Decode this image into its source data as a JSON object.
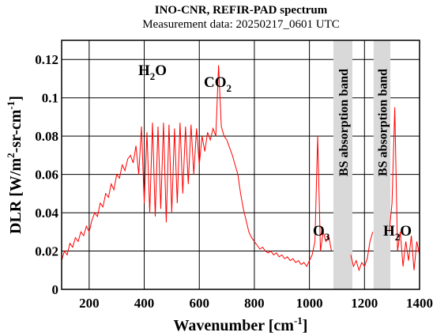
{
  "chart_data": {
    "type": "line",
    "title": "INO-CNR, REFIR-PAD spectrum",
    "subtitle": "Measurement data: 20250217_0601 UTC",
    "xlabel": [
      "Wavenumber [cm",
      "-1",
      "]"
    ],
    "ylabel": [
      "DLR [W/m",
      "2",
      "-sr-cm",
      "-1",
      "]"
    ],
    "xlim": [
      100,
      1400
    ],
    "ylim": [
      0,
      0.13
    ],
    "xticks": [
      200,
      400,
      600,
      800,
      1000,
      1200,
      1400
    ],
    "yticks": [
      0,
      0.02,
      0.04,
      0.06,
      0.08,
      0.1,
      0.12
    ],
    "grid": true,
    "bands": [
      {
        "label": "BS absorption band",
        "range": [
          1087,
          1156
        ]
      },
      {
        "label": "BS absorption band",
        "range": [
          1233,
          1294
        ]
      }
    ],
    "annotations": [
      {
        "parts": [
          "H",
          "2",
          "O"
        ]
      },
      {
        "parts": [
          "CO",
          "2"
        ]
      },
      {
        "parts": [
          "O",
          "3"
        ]
      },
      {
        "parts": [
          "H",
          "2",
          "O"
        ]
      }
    ],
    "x": [
      100,
      110,
      120,
      130,
      140,
      150,
      160,
      170,
      180,
      190,
      200,
      210,
      220,
      230,
      240,
      250,
      260,
      270,
      280,
      290,
      300,
      310,
      320,
      330,
      340,
      350,
      360,
      370,
      380,
      390,
      400,
      410,
      420,
      430,
      440,
      450,
      460,
      470,
      480,
      490,
      500,
      510,
      520,
      530,
      540,
      550,
      560,
      570,
      580,
      590,
      600,
      610,
      620,
      630,
      640,
      650,
      660,
      670,
      680,
      690,
      700,
      710,
      720,
      730,
      740,
      750,
      760,
      770,
      780,
      790,
      800,
      810,
      820,
      830,
      840,
      850,
      860,
      870,
      880,
      890,
      900,
      910,
      920,
      930,
      940,
      950,
      960,
      970,
      980,
      990,
      1000,
      1010,
      1020,
      1030,
      1040,
      1050,
      1060,
      1070,
      1080,
      1090,
      1100,
      1110,
      1120,
      1130,
      1140,
      1150,
      1160,
      1170,
      1180,
      1190,
      1200,
      1210,
      1220,
      1230,
      1240,
      1250,
      1260,
      1270,
      1280,
      1290,
      1300,
      1310,
      1320,
      1330,
      1340,
      1350,
      1360,
      1370,
      1380,
      1390,
      1400
    ],
    "series": [
      {
        "name": "DLR",
        "color": "#ff0000",
        "values": [
          0.015,
          0.02,
          0.018,
          0.024,
          0.022,
          0.027,
          0.025,
          0.03,
          0.028,
          0.033,
          0.03,
          0.036,
          0.04,
          0.038,
          0.045,
          0.043,
          0.05,
          0.048,
          0.055,
          0.052,
          0.06,
          0.058,
          0.065,
          0.062,
          0.068,
          0.07,
          0.066,
          0.075,
          0.06,
          0.085,
          0.045,
          0.082,
          0.04,
          0.087,
          0.038,
          0.085,
          0.042,
          0.087,
          0.035,
          0.086,
          0.04,
          0.084,
          0.045,
          0.087,
          0.05,
          0.085,
          0.055,
          0.086,
          0.06,
          0.084,
          0.065,
          0.08,
          0.072,
          0.082,
          0.078,
          0.084,
          0.08,
          0.117,
          0.085,
          0.08,
          0.078,
          0.074,
          0.07,
          0.065,
          0.06,
          0.05,
          0.042,
          0.036,
          0.03,
          0.027,
          0.025,
          0.023,
          0.021,
          0.022,
          0.02,
          0.019,
          0.02,
          0.018,
          0.019,
          0.017,
          0.018,
          0.016,
          0.017,
          0.015,
          0.016,
          0.014,
          0.015,
          0.013,
          0.014,
          0.012,
          0.015,
          0.018,
          0.025,
          0.08,
          0.02,
          0.03,
          0.025,
          0.028,
          0.02,
          null,
          null,
          null,
          null,
          null,
          null,
          0.018,
          0.012,
          0.015,
          0.01,
          0.014,
          0.012,
          0.016,
          0.025,
          0.03,
          null,
          null,
          null,
          null,
          null,
          0.03,
          0.045,
          0.095,
          0.02,
          0.03,
          0.012,
          0.025,
          0.015,
          0.028,
          0.01,
          0.025,
          0.018
        ]
      }
    ]
  }
}
